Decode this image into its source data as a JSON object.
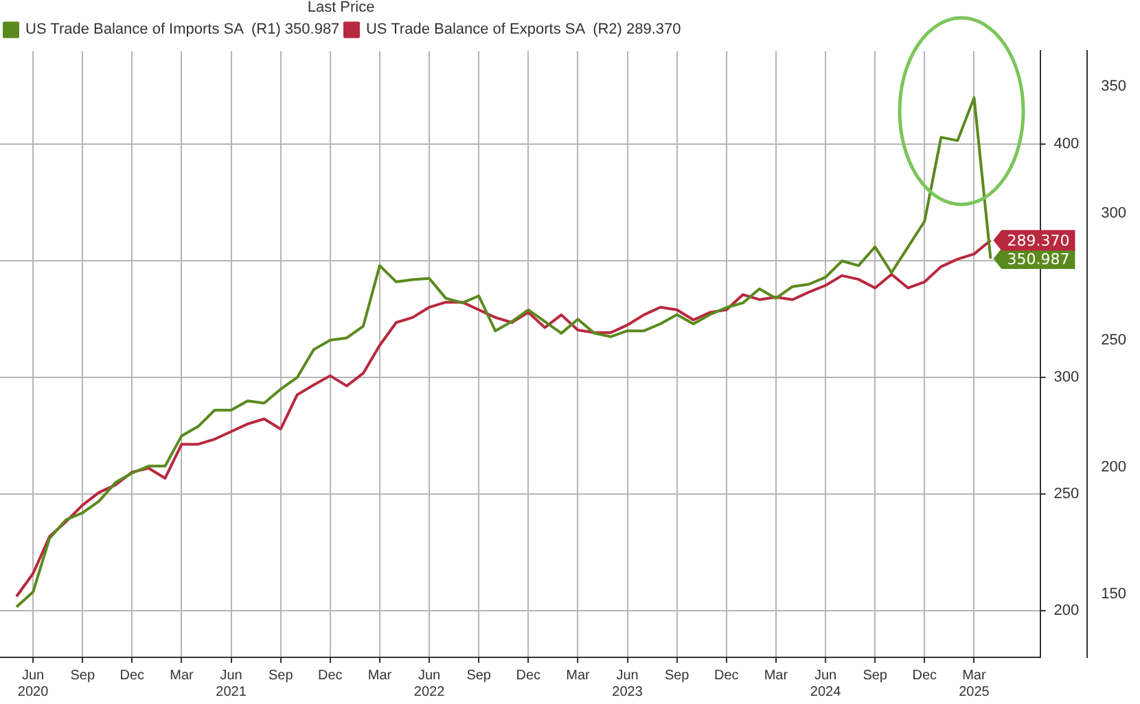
{
  "chart_data": {
    "type": "line",
    "legend_title": "Last Price",
    "legend": "top left",
    "grid": true,
    "marker": "none",
    "line_style": "solid",
    "x": [
      "2020-05",
      "2020-06",
      "2020-07",
      "2020-08",
      "2020-09",
      "2020-10",
      "2020-11",
      "2020-12",
      "2021-01",
      "2021-02",
      "2021-03",
      "2021-04",
      "2021-05",
      "2021-06",
      "2021-07",
      "2021-08",
      "2021-09",
      "2021-10",
      "2021-11",
      "2021-12",
      "2022-01",
      "2022-02",
      "2022-03",
      "2022-04",
      "2022-05",
      "2022-06",
      "2022-07",
      "2022-08",
      "2022-09",
      "2022-10",
      "2022-11",
      "2022-12",
      "2023-01",
      "2023-02",
      "2023-03",
      "2023-04",
      "2023-05",
      "2023-06",
      "2023-07",
      "2023-08",
      "2023-09",
      "2023-10",
      "2023-11",
      "2023-12",
      "2024-01",
      "2024-02",
      "2024-03",
      "2024-04",
      "2024-05",
      "2024-06",
      "2024-07",
      "2024-08",
      "2024-09",
      "2024-10",
      "2024-11",
      "2024-12",
      "2025-01",
      "2025-02",
      "2025-03",
      "2025-04"
    ],
    "xlim": [
      "2020-04",
      "2025-07"
    ],
    "xticks": [
      {
        "value": "2020-06",
        "label": "Jun\n2020"
      },
      {
        "value": "2020-09",
        "label": "Sep"
      },
      {
        "value": "2020-12",
        "label": "Dec"
      },
      {
        "value": "2021-03",
        "label": "Mar"
      },
      {
        "value": "2021-06",
        "label": "Jun\n2021"
      },
      {
        "value": "2021-09",
        "label": "Sep"
      },
      {
        "value": "2021-12",
        "label": "Dec"
      },
      {
        "value": "2022-03",
        "label": "Mar"
      },
      {
        "value": "2022-06",
        "label": "Jun\n2022"
      },
      {
        "value": "2022-09",
        "label": "Sep"
      },
      {
        "value": "2022-12",
        "label": "Dec"
      },
      {
        "value": "2023-03",
        "label": "Mar"
      },
      {
        "value": "2023-06",
        "label": "Jun\n2023"
      },
      {
        "value": "2023-09",
        "label": "Sep"
      },
      {
        "value": "2023-12",
        "label": "Dec"
      },
      {
        "value": "2024-03",
        "label": "Mar"
      },
      {
        "value": "2024-06",
        "label": "Jun\n2024"
      },
      {
        "value": "2024-09",
        "label": "Sep"
      },
      {
        "value": "2024-12",
        "label": "Dec"
      },
      {
        "value": "2025-03",
        "label": "Mar\n2025"
      }
    ],
    "ylim": [
      180,
      440
    ],
    "yticks": [
      200,
      250,
      300,
      {
        "value": 350,
        "label": null
      },
      400
    ],
    "y2lim": [
      125,
      364
    ],
    "y2ticks": [
      150,
      200,
      250,
      300,
      350
    ],
    "series": [
      {
        "name": "US Trade Balance of Imports SA  (R1) 350.987",
        "color": "#5a8a1e",
        "axis": "y",
        "values": [
          201.6,
          208,
          231,
          239,
          242,
          247,
          255,
          259,
          262,
          262,
          275,
          279,
          286,
          286,
          290,
          289,
          295,
          300,
          312,
          316,
          317,
          322,
          348,
          341,
          342,
          342.5,
          334,
          332,
          335,
          320,
          324,
          329,
          324,
          319,
          325,
          319,
          317.5,
          320,
          320,
          323,
          327,
          323,
          327,
          330,
          332,
          338,
          334,
          339,
          340,
          343,
          350,
          348,
          356,
          345,
          356,
          367,
          403,
          401.6,
          420,
          350.987
        ],
        "value_labels": [
          null,
          null,
          null,
          null,
          null,
          null,
          null,
          null,
          null,
          null,
          null,
          null,
          null,
          null,
          null,
          null,
          null,
          null,
          null,
          null,
          null,
          null,
          null,
          null,
          null,
          null,
          null,
          null,
          null,
          null,
          null,
          null,
          null,
          null,
          null,
          null,
          null,
          null,
          null,
          null,
          null,
          null,
          null,
          null,
          null,
          null,
          null,
          null,
          null,
          null,
          null,
          null,
          null,
          null,
          null,
          null,
          null,
          null,
          null,
          "350.987"
        ]
      },
      {
        "name": "US Trade Balance of Exports SA  (R2) 289.370",
        "color": "#b8283e",
        "axis": "y2",
        "values": [
          149,
          158,
          172.6,
          178.5,
          185,
          190,
          193,
          198,
          199.6,
          195.6,
          209,
          209,
          211,
          214,
          217,
          219,
          215,
          228.5,
          232.4,
          236,
          232,
          237,
          248,
          257,
          259,
          263,
          265,
          265,
          262,
          259,
          257,
          261,
          255,
          260,
          254,
          253,
          253,
          256,
          260,
          263,
          262,
          258,
          261,
          262,
          268,
          266,
          267,
          266,
          269,
          271.6,
          275.5,
          274,
          270.6,
          276,
          270.6,
          273,
          279,
          282,
          284,
          289.37
        ],
        "value_labels": [
          null,
          null,
          null,
          null,
          null,
          null,
          null,
          null,
          null,
          null,
          null,
          null,
          null,
          null,
          null,
          null,
          null,
          null,
          null,
          null,
          null,
          null,
          null,
          null,
          null,
          null,
          null,
          null,
          null,
          null,
          null,
          null,
          null,
          null,
          null,
          null,
          null,
          null,
          null,
          null,
          null,
          null,
          null,
          null,
          null,
          null,
          null,
          null,
          null,
          null,
          null,
          null,
          null,
          null,
          null,
          null,
          null,
          null,
          null,
          "289.370"
        ]
      }
    ]
  }
}
